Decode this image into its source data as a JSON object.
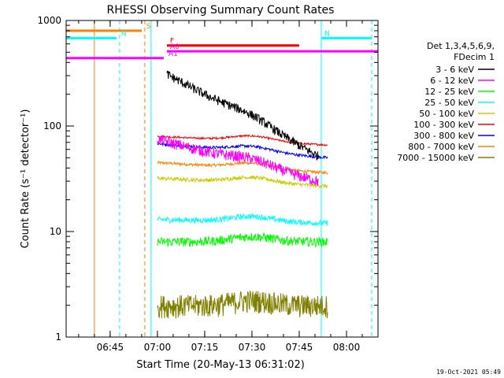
{
  "chart_data": {
    "type": "line",
    "title": "RHESSI Observing Summary Count Rates",
    "xlabel": "Start Time (20-May-13 06:31:02)",
    "ylabel": "Count Rate (s⁻¹ detector⁻¹)",
    "yscale": "log",
    "xlim": [
      "06:31:02",
      "08:10:00"
    ],
    "ylim": [
      1,
      1000
    ],
    "x_ticks": [
      "06:45",
      "07:00",
      "07:15",
      "07:30",
      "07:45",
      "08:00"
    ],
    "y_ticks": [
      "1",
      "10",
      "100",
      "1000"
    ],
    "legend_header": [
      "Det 1,3,4,5,6,9,",
      "FDecim 1"
    ],
    "legend_position": "right",
    "series": [
      {
        "name": "3 - 6 keV",
        "color": "#000000",
        "start": "07:03",
        "end": "07:51",
        "y_start": 310,
        "y_end": 52,
        "noise": 0.1
      },
      {
        "name": "6 - 12 keV",
        "color": "#ff00ff",
        "start": "07:00",
        "end": "07:51",
        "y_start": 75,
        "y_end": 30,
        "noise": 0.12
      },
      {
        "name": "12 - 25 keV",
        "color": "#00ff00",
        "start": "07:00",
        "end": "07:54",
        "y_start": 8,
        "y_end": 8,
        "noise": 0.1
      },
      {
        "name": "25 - 50 keV",
        "color": "#00ffff",
        "start": "07:00",
        "end": "07:54",
        "y_start": 13,
        "y_end": 12,
        "noise": 0.06
      },
      {
        "name": "50 - 100 keV",
        "color": "#cccc00",
        "start": "07:00",
        "end": "07:54",
        "y_start": 32,
        "y_end": 27,
        "noise": 0.04
      },
      {
        "name": "100 - 300 keV",
        "color": "#ff0000",
        "start": "07:00",
        "end": "07:54",
        "y_start": 80,
        "y_end": 66,
        "noise": 0.02
      },
      {
        "name": "300 - 800 keV",
        "color": "#0000ff",
        "start": "07:00",
        "end": "07:54",
        "y_start": 68,
        "y_end": 50,
        "noise": 0.03
      },
      {
        "name": "800 - 7000 keV",
        "color": "#ff8000",
        "start": "07:00",
        "end": "07:54",
        "y_start": 45,
        "y_end": 36,
        "noise": 0.03
      },
      {
        "name": "7000 - 15000 keV",
        "color": "#808000",
        "start": "07:00",
        "end": "07:54",
        "y_start": 2,
        "y_end": 2,
        "noise": 0.25
      }
    ],
    "flag_bars": [
      {
        "label": "S",
        "color": "#ff8000",
        "start": "06:31:02",
        "end": "06:55",
        "level": 800
      },
      {
        "label": "N",
        "color": "#00ffff",
        "start": "06:31:02",
        "end": "06:47",
        "level": 680
      },
      {
        "label": "N",
        "color": "#00ffff",
        "start": "07:52",
        "end": "08:08",
        "level": 680
      },
      {
        "label": "F",
        "color": "#ff0000",
        "start": "07:03",
        "end": "07:45",
        "level": 580
      },
      {
        "label": "A0",
        "color": "#ff00ff",
        "start": "07:03",
        "end": "08:10",
        "level": 510
      },
      {
        "label": "A1",
        "color": "#ff00ff",
        "start": "06:31:02",
        "end": "07:02",
        "level": 440
      }
    ],
    "markers": [
      {
        "time": "06:40",
        "color": "#ff8000",
        "style": "solid"
      },
      {
        "time": "06:48",
        "color": "#00ffff",
        "style": "dashed"
      },
      {
        "time": "06:56",
        "color": "#ff8000",
        "style": "dashed"
      },
      {
        "time": "06:58",
        "color": "#00ffff",
        "style": "solid"
      },
      {
        "time": "07:52",
        "color": "#00ffff",
        "style": "solid"
      },
      {
        "time": "08:08",
        "color": "#00ffff",
        "style": "dashed"
      }
    ],
    "footer_date": "19-Oct-2021 05:49"
  }
}
